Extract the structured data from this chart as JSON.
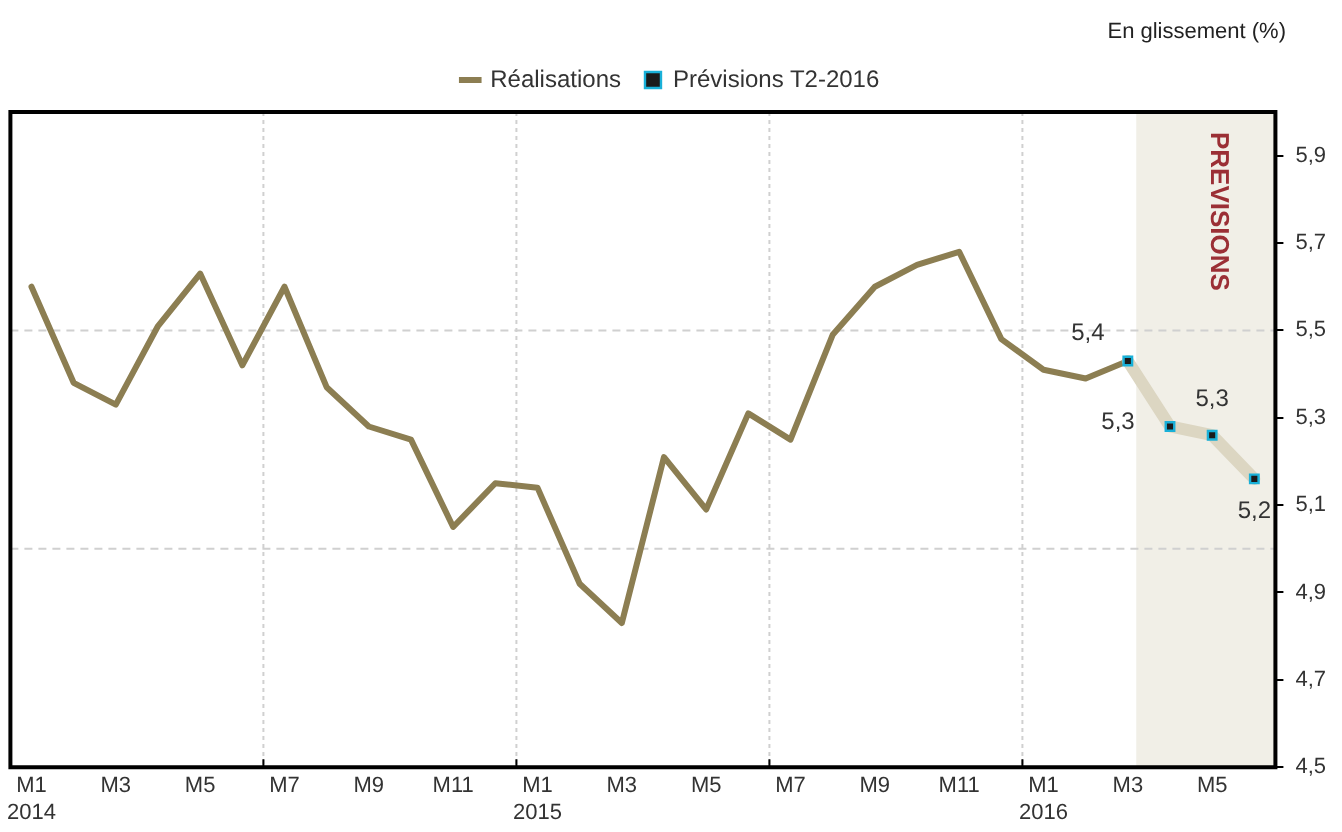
{
  "chart_data": {
    "type": "line",
    "ylabel": "En glissement (%)",
    "categories": [
      "M1\n2014",
      null,
      "M3",
      null,
      "M5",
      null,
      "M7",
      null,
      "M9",
      null,
      "M11",
      null,
      "M1\n2015",
      null,
      "M3",
      null,
      "M5",
      null,
      "M7",
      null,
      "M9",
      null,
      "M11",
      null,
      "M1\n2016",
      null,
      "M3",
      null,
      "M5",
      null
    ],
    "series": [
      {
        "name": "Réalisations",
        "color": "#8c7e52",
        "marker": "none",
        "values": [
          5.6,
          5.38,
          5.33,
          5.51,
          5.63,
          5.42,
          5.6,
          5.37,
          5.28,
          5.25,
          5.05,
          5.15,
          5.14,
          4.92,
          4.83,
          5.21,
          5.09,
          5.31,
          5.25,
          5.49,
          5.6,
          5.65,
          5.68,
          5.48,
          5.41,
          5.39,
          5.43,
          null,
          null,
          null
        ]
      },
      {
        "name": "Prévisions T2-2016",
        "color": "#dcd6c2",
        "marker": "square",
        "values": [
          null,
          null,
          null,
          null,
          null,
          null,
          null,
          null,
          null,
          null,
          null,
          null,
          null,
          null,
          null,
          null,
          null,
          null,
          null,
          null,
          null,
          null,
          null,
          null,
          null,
          null,
          5.43,
          5.28,
          5.26,
          5.16
        ],
        "value_labels": [
          null,
          null,
          null,
          null,
          null,
          null,
          null,
          null,
          null,
          null,
          null,
          null,
          null,
          null,
          null,
          null,
          null,
          null,
          null,
          null,
          null,
          null,
          null,
          null,
          null,
          null,
          "5,4",
          "5,3",
          "5,3",
          "5,2"
        ]
      }
    ],
    "ylim": [
      4.5,
      6.0
    ],
    "yticks": [
      {
        "value": 4.5,
        "label": "4,5"
      },
      {
        "value": 4.7,
        "label": "4,7"
      },
      {
        "value": 4.9,
        "label": "4,9"
      },
      {
        "value": 5.1,
        "label": "5,1"
      },
      {
        "value": 5.3,
        "label": "5,3"
      },
      {
        "value": 5.5,
        "label": "5,5"
      },
      {
        "value": 5.7,
        "label": "5,7"
      },
      {
        "value": 5.9,
        "label": "5,9"
      }
    ],
    "annotations": [
      "PREVISIONS"
    ],
    "ref_lines": [
      {
        "axis": "y",
        "value": 5.0,
        "color": "#d0d0d0",
        "line_style": "dashed"
      },
      {
        "axis": "y",
        "value": 5.5,
        "color": "#d0d0d0",
        "line_style": "dashed"
      }
    ],
    "grid": false,
    "legend": "top"
  }
}
